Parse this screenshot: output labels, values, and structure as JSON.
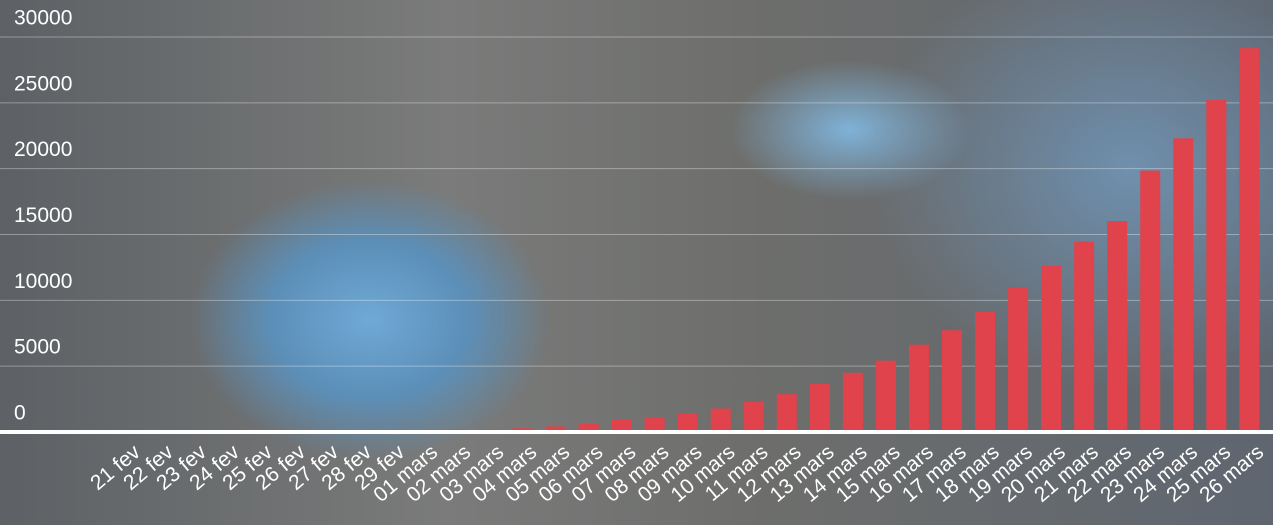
{
  "chart_data": {
    "type": "bar",
    "categories": [
      "21 fev",
      "22 fev",
      "23 fev",
      "24 fev",
      "25 fev",
      "26 fev",
      "27 fev",
      "28 fev",
      "29 fev",
      "01 mars",
      "02 mars",
      "03 mars",
      "04 mars",
      "05 mars",
      "06 mars",
      "07 mars",
      "08 mars",
      "09 mars",
      "10 mars",
      "11 mars",
      "12 mars",
      "13 mars",
      "14 mars",
      "15 mars",
      "16 mars",
      "17 mars",
      "18 mars",
      "19 mars",
      "20 mars",
      "21 mars",
      "22 mars",
      "23 mars",
      "24 mars",
      "25 mars",
      "26 mars"
    ],
    "values": [
      12,
      12,
      12,
      12,
      14,
      18,
      38,
      57,
      100,
      130,
      191,
      212,
      285,
      423,
      613,
      949,
      1126,
      1412,
      1784,
      2281,
      2876,
      3661,
      4499,
      5423,
      6633,
      7730,
      9134,
      10995,
      12612,
      14459,
      16018,
      19856,
      22302,
      25233,
      29155
    ],
    "color": "#e0434b",
    "ylim": [
      0,
      30000
    ],
    "yticks": [
      0,
      5000,
      10000,
      15000,
      20000,
      25000,
      30000
    ],
    "grid": true
  }
}
